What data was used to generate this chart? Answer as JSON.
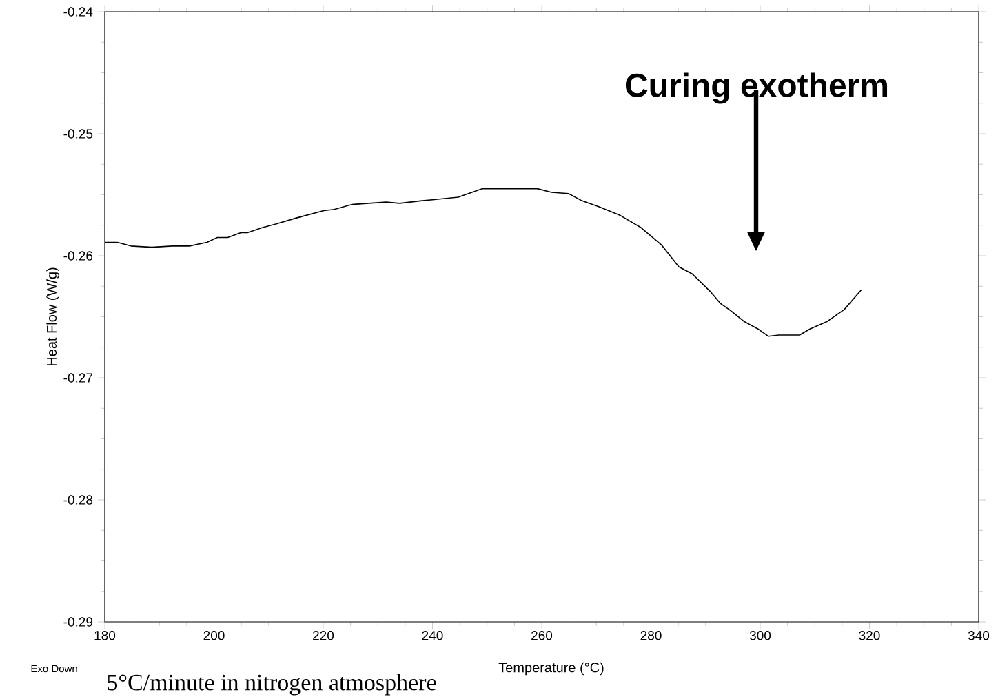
{
  "chart_data": {
    "type": "line",
    "xlabel": "Temperature (°C)",
    "ylabel": "Heat Flow (W/g)",
    "xlim": [
      180,
      340
    ],
    "xticks": [
      180,
      200,
      220,
      240,
      260,
      280,
      300,
      320,
      340
    ],
    "ylim": [
      -0.29,
      -0.24
    ],
    "yticks": [
      -0.29,
      -0.28,
      -0.27,
      -0.26,
      -0.25,
      -0.24
    ],
    "color": "#000000",
    "x": [
      180,
      182.3,
      184.8,
      188.6,
      192.4,
      195.5,
      198.7,
      200.6,
      202.5,
      205,
      206.2,
      208.8,
      211.3,
      215.1,
      220.1,
      222,
      225.2,
      228.3,
      231.5,
      234,
      237.8,
      240.3,
      244.7,
      249.1,
      254.2,
      259.2,
      261.8,
      264.9,
      267.4,
      270.6,
      274.4,
      278.2,
      281.9,
      285.1,
      287.6,
      290.8,
      292.7,
      294.6,
      297.1,
      299.6,
      301.5,
      303.4,
      307.2,
      309.1,
      312.2,
      315.4,
      318.5
    ],
    "values": [
      -0.2589,
      -0.2589,
      -0.2592,
      -0.2593,
      -0.2592,
      -0.2592,
      -0.2589,
      -0.2585,
      -0.2585,
      -0.2581,
      -0.2581,
      -0.2577,
      -0.2574,
      -0.2569,
      -0.2563,
      -0.2562,
      -0.2558,
      -0.2557,
      -0.2556,
      -0.2557,
      -0.2555,
      -0.2554,
      -0.2552,
      -0.2545,
      -0.2545,
      -0.2545,
      -0.2548,
      -0.2549,
      -0.2555,
      -0.256,
      -0.2567,
      -0.2577,
      -0.2591,
      -0.2609,
      -0.2615,
      -0.2629,
      -0.2639,
      -0.2645,
      -0.2654,
      -0.266,
      -0.2666,
      -0.2665,
      -0.2665,
      -0.266,
      -0.2654,
      -0.2644,
      -0.2628
    ],
    "annotations": [
      "Exo Down",
      "5°C/minute in nitrogen atmosphere",
      "Curing exotherm"
    ]
  }
}
